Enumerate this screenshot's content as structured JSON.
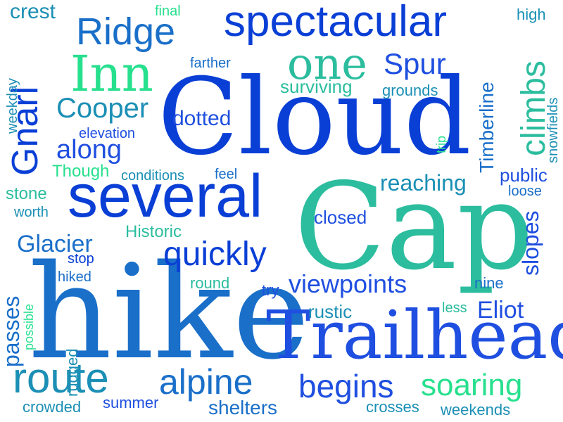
{
  "palette": {
    "deep_blue": "#0a3fd6",
    "royal_blue": "#1f4fe0",
    "medium_blue": "#1a6fc9",
    "teal_blue": "#1b8fb5",
    "sea_green": "#2bbd9e",
    "mint_green": "#27e08e"
  },
  "words": [
    "Cloud",
    "Cap",
    "hike",
    "Trailhead",
    "several",
    "spectacular",
    "Ridge",
    "Inn",
    "one",
    "Gnarl",
    "Spur",
    "climbs",
    "Cooper",
    "dotted",
    "along",
    "elevation",
    "Timberline",
    "surviving",
    "grounds",
    "crest",
    "final",
    "high",
    "farther",
    "weekday",
    "snowfields",
    "trip",
    "Though",
    "conditions",
    "feel",
    "public",
    "reaching",
    "stone",
    "loose",
    "worth",
    "closed",
    "Historic",
    "slopes",
    "Glacier",
    "quickly",
    "stop",
    "hiked",
    "round",
    "nine",
    "viewpoints",
    "try",
    "less",
    "Eliot",
    "possible",
    "passes",
    "rustic",
    "rugged",
    "route",
    "alpine",
    "begins",
    "soaring",
    "crowded",
    "summer",
    "shelters",
    "crosses",
    "weekends"
  ]
}
